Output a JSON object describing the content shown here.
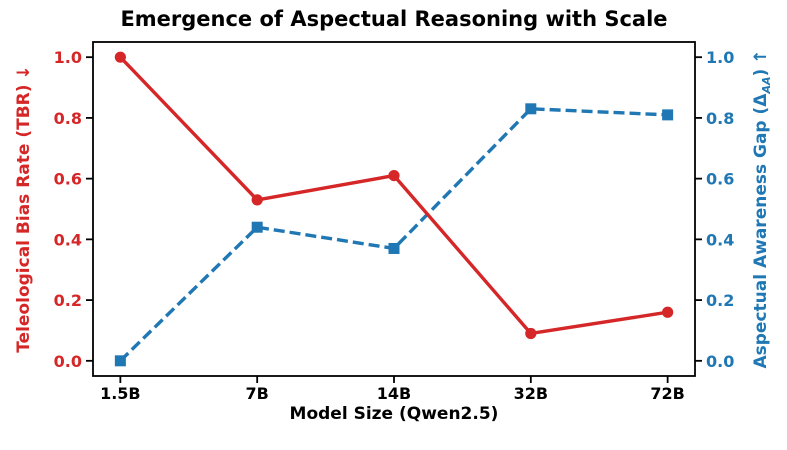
{
  "chart_data": {
    "type": "line",
    "title": "Emergence of Aspectual Reasoning with Scale",
    "categories": [
      "1.5B",
      "7B",
      "14B",
      "32B",
      "72B"
    ],
    "x_axis": {
      "label": "Model Size (Qwen2.5)",
      "color": "#000000"
    },
    "left_axis": {
      "label": "Teleological Bias Rate (TBR)",
      "arrow": "↓",
      "color": "#d62728",
      "ticks": [
        0.0,
        0.2,
        0.4,
        0.6,
        0.8,
        1.0
      ],
      "tick_labels": [
        "0.0",
        "0.2",
        "0.4",
        "0.6",
        "0.8",
        "1.0"
      ],
      "range": [
        -0.05,
        1.05
      ]
    },
    "right_axis": {
      "label_prefix": "Aspectual Awareness Gap (Δ",
      "label_subscript": "AA",
      "label_suffix": ")",
      "arrow": "↑",
      "color": "#1f77b4",
      "ticks": [
        0.0,
        0.2,
        0.4,
        0.6,
        0.8,
        1.0
      ],
      "tick_labels": [
        "0.0",
        "0.2",
        "0.4",
        "0.6",
        "0.8",
        "1.0"
      ],
      "range": [
        -0.05,
        1.05
      ]
    },
    "series": [
      {
        "name": "Aspectual Awareness Gap (ΔAA)",
        "axis": "right",
        "color": "#1f77b4",
        "line_style": "dashed",
        "marker": "square",
        "values": [
          0.0,
          0.44,
          0.37,
          0.83,
          0.81
        ]
      },
      {
        "name": "Teleological Bias Rate (TBR)",
        "axis": "left",
        "color": "#d62728",
        "line_style": "solid",
        "marker": "circle",
        "values": [
          1.0,
          0.53,
          0.61,
          0.09,
          0.16
        ]
      }
    ],
    "grid": false,
    "legend": "none",
    "frame_color": "#000000",
    "background": "#ffffff"
  }
}
